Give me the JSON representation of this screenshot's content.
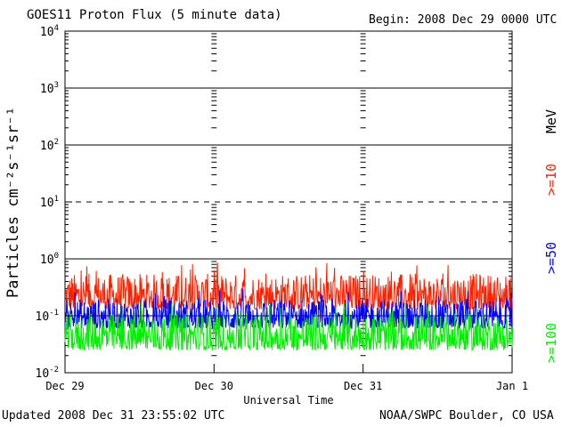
{
  "header": {
    "title": "GOES11 Proton Flux (5 minute data)",
    "begin": "Begin: 2008 Dec 29 0000 UTC"
  },
  "footer": {
    "updated": "Updated 2008 Dec 31 23:55:02 UTC",
    "credit": "NOAA/SWPC Boulder, CO USA"
  },
  "chart_data": {
    "type": "line",
    "title": "GOES11 Proton Flux (5 minute data)",
    "xlabel": "Universal Time",
    "ylabel": "Particles cm⁻²s⁻¹sr⁻¹",
    "y_scale": "log",
    "ylim": [
      0.01,
      10000
    ],
    "y_ticks": [
      {
        "value": 10000,
        "base": "10",
        "exp": "4"
      },
      {
        "value": 1000,
        "base": "10",
        "exp": "3"
      },
      {
        "value": 100,
        "base": "10",
        "exp": "2"
      },
      {
        "value": 10,
        "base": "10",
        "exp": "1"
      },
      {
        "value": 1,
        "base": "10",
        "exp": "0"
      },
      {
        "value": 0.1,
        "base": "10",
        "exp": "-1"
      },
      {
        "value": 0.01,
        "base": "10",
        "exp": "-2"
      }
    ],
    "x_ticks": [
      "Dec 29",
      "Dec 30",
      "Dec 31",
      "Jan 1"
    ],
    "xlim": [
      "2008-12-29",
      "2009-01-01"
    ],
    "threshold_lines": [
      {
        "value": 1000,
        "style": "solid"
      },
      {
        "value": 100,
        "style": "solid"
      },
      {
        "value": 10,
        "style": "dashed"
      },
      {
        "value": 1,
        "style": "solid"
      },
      {
        "value": 0.1,
        "style": "solid"
      }
    ],
    "units_label": "MeV",
    "series": [
      {
        "name": ">=10",
        "color": "#ff2000",
        "typical_range": [
          0.13,
          0.55
        ]
      },
      {
        "name": ">=50",
        "color": "#0000ff",
        "typical_range": [
          0.06,
          0.2
        ]
      },
      {
        "name": ">=100",
        "color": "#00ee00",
        "typical_range": [
          0.025,
          0.11
        ]
      }
    ]
  }
}
